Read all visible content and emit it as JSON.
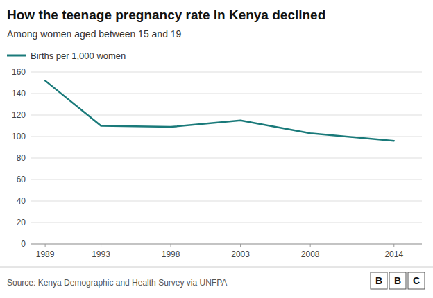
{
  "chart_data": {
    "type": "line",
    "title": "How the teenage pregnancy rate in Kenya declined",
    "subtitle": "Among women aged between 15 and 19",
    "source": "Source: Kenya Demographic and Health Survey via UNFPA",
    "annotations": [
      "B",
      "B",
      "C"
    ],
    "x": [
      1989,
      1993,
      1998,
      2003,
      2008,
      2014
    ],
    "series": [
      {
        "name": "Births per 1,000 women",
        "color": "#1a7a7a",
        "values": [
          152,
          110,
          109,
          115,
          103,
          96
        ]
      }
    ],
    "xlim": [
      1988,
      2016
    ],
    "xticks": [
      1989,
      1993,
      1998,
      2003,
      2008,
      2014
    ],
    "ylim": [
      0,
      160
    ],
    "yticks": [
      0,
      20,
      40,
      60,
      80,
      100,
      120,
      140,
      160
    ],
    "grid": true,
    "legend": "upper left"
  }
}
